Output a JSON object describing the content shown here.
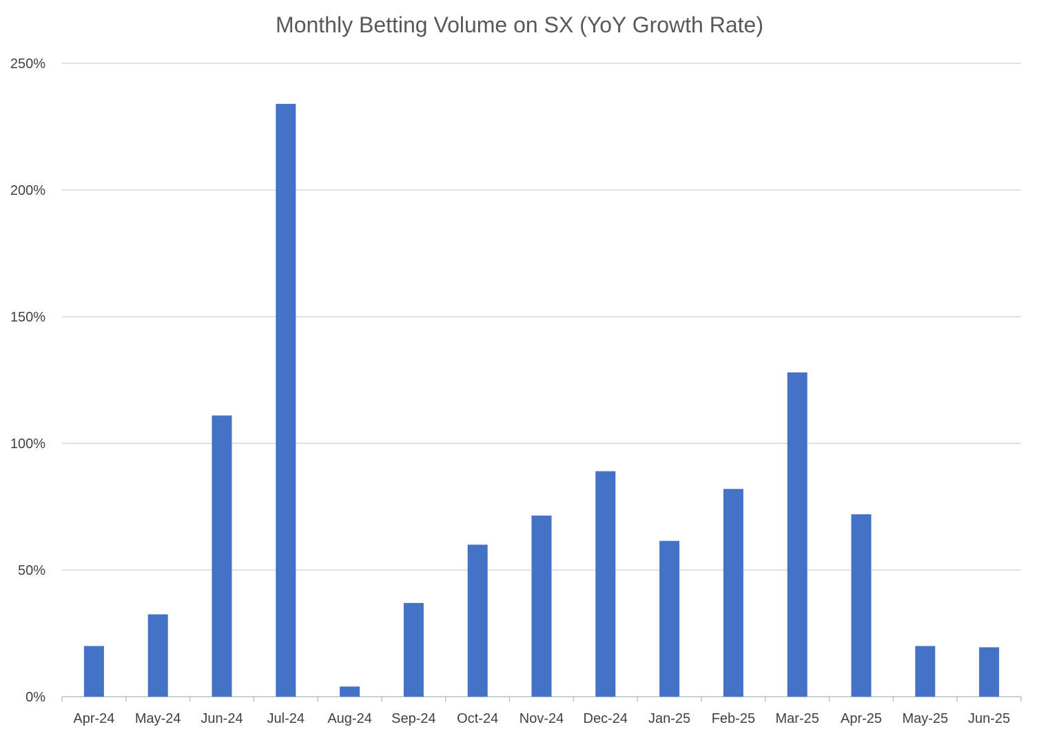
{
  "chart_data": {
    "type": "bar",
    "title": "Monthly Betting Volume on SX (YoY Growth Rate)",
    "xlabel": "",
    "ylabel": "",
    "categories": [
      "Apr-24",
      "May-24",
      "Jun-24",
      "Jul-24",
      "Aug-24",
      "Sep-24",
      "Oct-24",
      "Nov-24",
      "Dec-24",
      "Jan-25",
      "Feb-25",
      "Mar-25",
      "Apr-25",
      "May-25",
      "Jun-25"
    ],
    "values": [
      20,
      32.5,
      111,
      234,
      4,
      37,
      60,
      71.5,
      89,
      61.5,
      82,
      128,
      72,
      20,
      19.5
    ],
    "ylim": [
      0,
      250
    ],
    "yticks": [
      0,
      50,
      100,
      150,
      200,
      250
    ],
    "ytick_labels": [
      "0%",
      "50%",
      "100%",
      "150%",
      "200%",
      "250%"
    ],
    "grid": true,
    "legend": "none",
    "bar_color": "#4472C4",
    "grid_color": "#D9D9D9",
    "axis_color": "#BFBFBF"
  }
}
